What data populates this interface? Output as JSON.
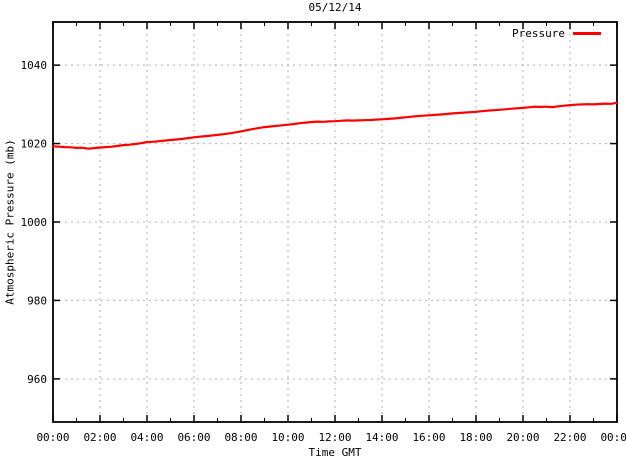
{
  "chart_data": {
    "type": "line",
    "title": "05/12/14",
    "xlabel": "Time GMT",
    "ylabel": "Atmospheric Pressure (mb)",
    "grid": true,
    "legend_position": "top-right-inside",
    "xlim": [
      0,
      24
    ],
    "ylim": [
      949,
      1051
    ],
    "x_ticks": [
      0,
      2,
      4,
      6,
      8,
      10,
      12,
      14,
      16,
      18,
      20,
      22,
      24
    ],
    "x_tick_labels": [
      "00:00",
      "02:00",
      "04:00",
      "06:00",
      "08:00",
      "10:00",
      "12:00",
      "14:00",
      "16:00",
      "18:00",
      "20:00",
      "22:00",
      "00:00"
    ],
    "x_minor_tick_interval": 1,
    "y_ticks": [
      960,
      980,
      1000,
      1020,
      1040
    ],
    "y_tick_labels": [
      "960",
      "980",
      "1000",
      "1020",
      "1040"
    ],
    "series": [
      {
        "name": "Pressure",
        "color": "#ff0000",
        "x": [
          0,
          0.25,
          0.5,
          0.75,
          1,
          1.25,
          1.5,
          1.75,
          2,
          2.25,
          2.5,
          2.75,
          3,
          3.25,
          3.5,
          3.75,
          4,
          4.25,
          4.5,
          4.75,
          5,
          5.25,
          5.5,
          5.75,
          6,
          6.25,
          6.5,
          6.75,
          7,
          7.25,
          7.5,
          7.75,
          8,
          8.25,
          8.5,
          8.75,
          9,
          9.25,
          9.5,
          9.75,
          10,
          10.25,
          10.5,
          10.75,
          11,
          11.25,
          11.5,
          11.75,
          12,
          12.25,
          12.5,
          12.75,
          13,
          13.25,
          13.5,
          13.75,
          14,
          14.25,
          14.5,
          14.75,
          15,
          15.25,
          15.5,
          15.75,
          16,
          16.25,
          16.5,
          16.75,
          17,
          17.25,
          17.5,
          17.75,
          18,
          18.25,
          18.5,
          18.75,
          19,
          19.25,
          19.5,
          19.75,
          20,
          20.25,
          20.5,
          20.75,
          21,
          21.25,
          21.5,
          21.75,
          22,
          22.25,
          22.5,
          22.75,
          23,
          23.25,
          23.5,
          23.75,
          24
        ],
        "values": [
          1019.3,
          1019.2,
          1019.1,
          1019.05,
          1018.9,
          1018.95,
          1018.7,
          1018.85,
          1019.0,
          1019.1,
          1019.2,
          1019.4,
          1019.6,
          1019.7,
          1019.9,
          1020.1,
          1020.4,
          1020.45,
          1020.6,
          1020.75,
          1020.9,
          1021.05,
          1021.2,
          1021.4,
          1021.6,
          1021.75,
          1021.9,
          1022.05,
          1022.2,
          1022.4,
          1022.6,
          1022.85,
          1023.1,
          1023.4,
          1023.7,
          1023.95,
          1024.2,
          1024.35,
          1024.5,
          1024.65,
          1024.8,
          1025.0,
          1025.2,
          1025.35,
          1025.5,
          1025.6,
          1025.55,
          1025.65,
          1025.7,
          1025.8,
          1025.9,
          1025.85,
          1025.9,
          1025.95,
          1026.0,
          1026.1,
          1026.2,
          1026.3,
          1026.4,
          1026.55,
          1026.7,
          1026.85,
          1027.0,
          1027.1,
          1027.2,
          1027.3,
          1027.4,
          1027.55,
          1027.7,
          1027.8,
          1027.9,
          1028.0,
          1028.1,
          1028.25,
          1028.4,
          1028.5,
          1028.6,
          1028.75,
          1028.9,
          1029.0,
          1029.1,
          1029.25,
          1029.4,
          1029.35,
          1029.4,
          1029.3,
          1029.5,
          1029.65,
          1029.8,
          1029.9,
          1030.0,
          1030.05,
          1030.0,
          1030.1,
          1030.2,
          1030.15,
          1030.4
        ]
      }
    ]
  },
  "colors": {
    "line": "#ff0000",
    "grid": "#b0b0b0",
    "border": "#000000",
    "background": "#ffffff",
    "text": "#000000"
  }
}
